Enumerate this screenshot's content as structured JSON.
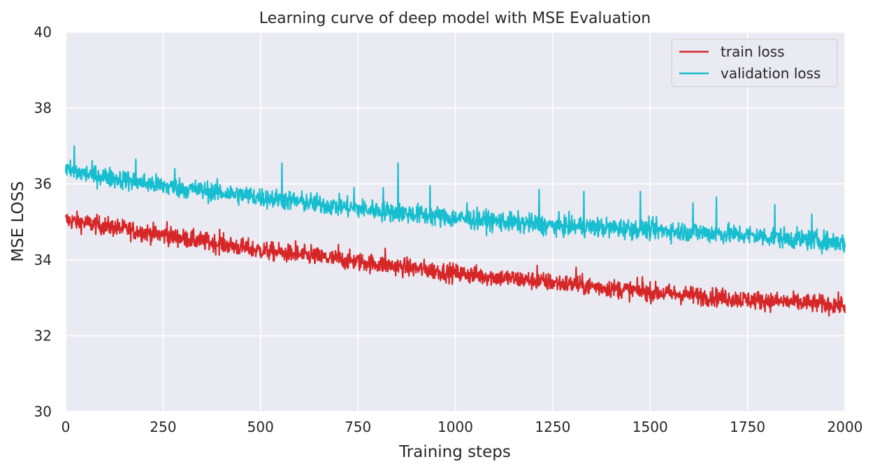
{
  "chart_data": {
    "type": "line",
    "title": "Learning curve of deep model with MSE Evaluation",
    "xlabel": "Training steps",
    "ylabel": "MSE LOSS",
    "xlim": [
      0,
      2000
    ],
    "ylim": [
      30,
      40
    ],
    "xticks": [
      0,
      250,
      500,
      750,
      1000,
      1250,
      1500,
      1750,
      2000
    ],
    "yticks": [
      30,
      32,
      34,
      36,
      38,
      40
    ],
    "grid": true,
    "legend_position": "top-right",
    "background": "#eaeaf2",
    "grid_color": "#ffffff",
    "series": [
      {
        "name": "train loss",
        "color": "#d62728",
        "noise": 0.12,
        "trend": {
          "x": [
            0,
            250,
            500,
            750,
            1000,
            1250,
            1500,
            1750,
            2000
          ],
          "y": [
            35.05,
            34.65,
            34.25,
            33.95,
            33.65,
            33.4,
            33.15,
            32.95,
            32.8
          ]
        },
        "spikes": {
          "x": [
            260,
            395,
            590,
            630,
            700,
            820,
            1210,
            1310,
            1480
          ],
          "y": [
            35.0,
            34.8,
            34.5,
            34.4,
            34.4,
            34.3,
            33.85,
            33.8,
            33.55
          ]
        }
      },
      {
        "name": "validation loss",
        "color": "#17becf",
        "noise": 0.13,
        "trend": {
          "x": [
            0,
            250,
            500,
            750,
            1000,
            1250,
            1500,
            1750,
            2000
          ],
          "y": [
            36.35,
            35.95,
            35.65,
            35.35,
            35.1,
            34.9,
            34.8,
            34.65,
            34.45
          ]
        },
        "spikes": {
          "x": [
            22,
            180,
            280,
            555,
            740,
            815,
            853,
            935,
            1030,
            1215,
            1330,
            1475,
            1610,
            1670,
            1820,
            1915
          ],
          "y": [
            37.0,
            36.65,
            36.4,
            36.55,
            35.9,
            35.9,
            36.55,
            35.95,
            35.5,
            35.85,
            35.8,
            35.8,
            35.5,
            35.65,
            35.45,
            35.2
          ]
        }
      }
    ]
  }
}
